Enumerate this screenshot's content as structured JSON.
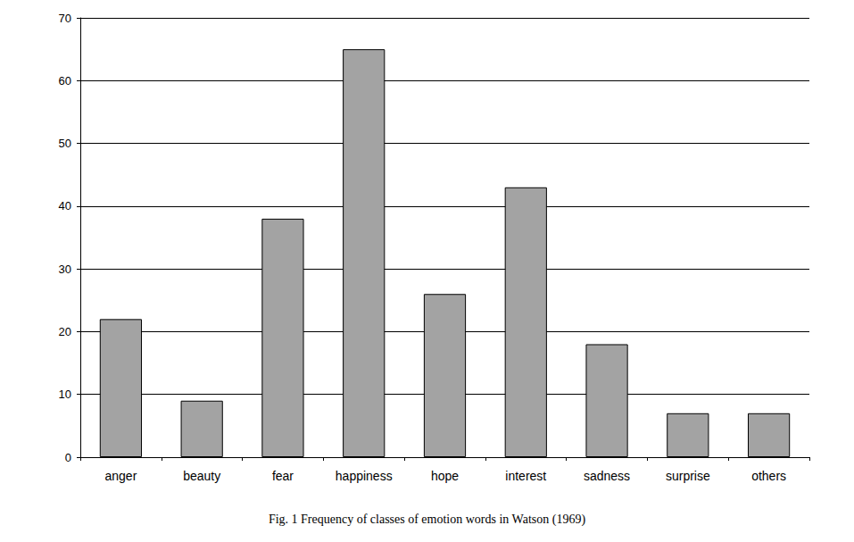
{
  "chart_data": {
    "type": "bar",
    "title": "Fig. 1 Frequency of classes of emotion words in Watson (1969)",
    "categories": [
      "anger",
      "beauty",
      "fear",
      "happiness",
      "hope",
      "interest",
      "sadness",
      "surprise",
      "others"
    ],
    "values": [
      22,
      9,
      38,
      65,
      26,
      43,
      18,
      7,
      7
    ],
    "color": "#a3a3a3",
    "ylim": [
      0,
      70
    ],
    "yticks": [
      0,
      10,
      20,
      30,
      40,
      50,
      60,
      70
    ],
    "grid": true
  }
}
